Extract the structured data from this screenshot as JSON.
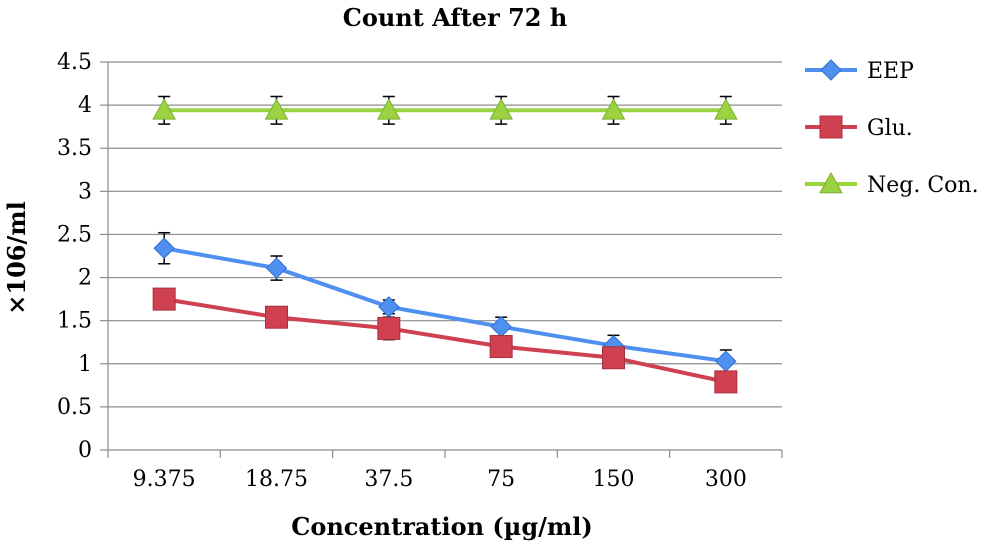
{
  "chart_data": {
    "type": "line",
    "title": "Count After 72 h",
    "xlabel": "Concentration (µg/ml)",
    "ylabel": "×106/ml",
    "categories": [
      "9.375",
      "18.75",
      "37.5",
      "75",
      "150",
      "300"
    ],
    "ylim": [
      0,
      4.5
    ],
    "yticks": [
      "0",
      "0.5",
      "1",
      "1.5",
      "2",
      "2.5",
      "3",
      "3.5",
      "4",
      "4.5"
    ],
    "grid": true,
    "legend_position": "right",
    "series": [
      {
        "name": "EEP",
        "color": "#4f8ff0",
        "marker": "diamond",
        "values": [
          2.34,
          2.11,
          1.66,
          1.43,
          1.21,
          1.03
        ],
        "errors": [
          0.18,
          0.14,
          0.08,
          0.11,
          0.12,
          0.13
        ]
      },
      {
        "name": "Glu.",
        "color": "#cf4050",
        "marker": "square",
        "values": [
          1.75,
          1.54,
          1.41,
          1.2,
          1.07,
          0.79
        ],
        "errors": [
          0.12,
          0.0,
          0.13,
          0.0,
          0.0,
          0.0
        ]
      },
      {
        "name": "Neg. Con.",
        "color": "#9bd241",
        "marker": "triangle",
        "values": [
          3.94,
          3.94,
          3.94,
          3.94,
          3.94,
          3.94
        ],
        "errors": [
          0.16,
          0.16,
          0.16,
          0.16,
          0.16,
          0.16
        ]
      }
    ]
  }
}
